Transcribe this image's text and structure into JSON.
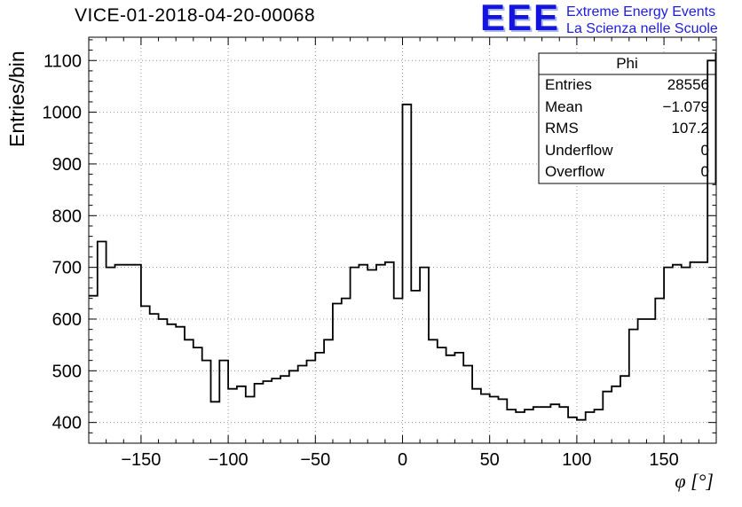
{
  "title": "VICE-01-2018-04-20-00068",
  "logo": {
    "acronym": "EEE",
    "line1": "Extreme Energy Events",
    "line2": "La Scienza nelle Scuole",
    "color": "#1414dd"
  },
  "stats": {
    "header": "Phi",
    "rows": [
      {
        "label": "Entries",
        "value": "28556"
      },
      {
        "label": "Mean",
        "value": "−1.079"
      },
      {
        "label": "RMS",
        "value": "107.2"
      },
      {
        "label": "Underflow",
        "value": "0"
      },
      {
        "label": "Overflow",
        "value": "0"
      }
    ]
  },
  "chart_data": {
    "type": "bar",
    "subtype": "step-histogram",
    "title": "VICE-01-2018-04-20-00068",
    "xlabel": "φ [°]",
    "ylabel": "Entries/bin",
    "xlim": [
      -180,
      180
    ],
    "ylim": [
      360,
      1145
    ],
    "xticks": [
      -150,
      -100,
      -50,
      0,
      50,
      100,
      150
    ],
    "yticks": [
      400,
      500,
      600,
      700,
      800,
      900,
      1000,
      1100
    ],
    "x_minor_step": 10,
    "y_minor_step": 20,
    "grid": true,
    "legend": "none",
    "line_color": "#000000",
    "bin_start": -180,
    "bin_width": 5,
    "values": [
      645,
      750,
      700,
      705,
      705,
      705,
      625,
      610,
      600,
      590,
      585,
      560,
      545,
      520,
      440,
      520,
      465,
      470,
      450,
      475,
      480,
      485,
      490,
      500,
      510,
      520,
      535,
      560,
      630,
      640,
      700,
      705,
      695,
      705,
      710,
      640,
      1015,
      655,
      700,
      560,
      545,
      530,
      535,
      510,
      465,
      455,
      450,
      445,
      425,
      420,
      425,
      430,
      430,
      435,
      430,
      410,
      405,
      420,
      425,
      460,
      470,
      490,
      580,
      600,
      600,
      640,
      700,
      705,
      700,
      710,
      710,
      1100
    ]
  }
}
